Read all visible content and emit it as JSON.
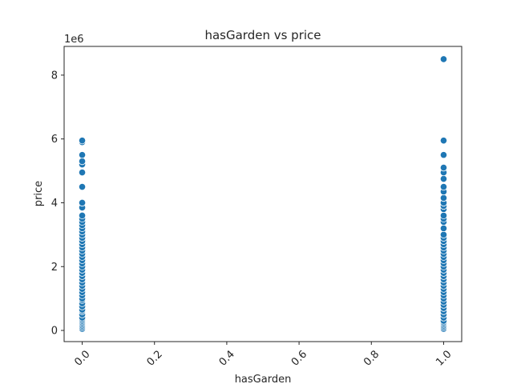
{
  "chart_data": {
    "type": "scatter",
    "title": "hasGarden vs price",
    "xlabel": "hasGarden",
    "ylabel": "price",
    "y_offset_label": "1e6",
    "xlim": [
      -0.05,
      1.05
    ],
    "ylim": [
      -0.35,
      8.9
    ],
    "y_scale_note": "values in units of 1e6",
    "xticks": [
      0.0,
      0.2,
      0.4,
      0.6,
      0.8,
      1.0
    ],
    "xtick_labels": [
      "0.0",
      "0.2",
      "0.4",
      "0.6",
      "0.8",
      "1.0"
    ],
    "yticks": [
      0,
      2,
      4,
      6,
      8
    ],
    "ytick_labels": [
      "0",
      "2",
      "4",
      "6",
      "8"
    ],
    "grid": false,
    "marker_color": "#1f77b4",
    "series": [
      {
        "x": 0,
        "y": [
          0.05,
          0.1,
          0.15,
          0.2,
          0.25,
          0.3,
          0.35,
          0.4,
          0.5,
          0.6,
          0.65,
          0.75,
          0.85,
          0.95,
          1.0,
          1.1,
          1.2,
          1.3,
          1.4,
          1.5,
          1.6,
          1.7,
          1.8,
          1.9,
          2.0,
          2.1,
          2.2,
          2.3,
          2.4,
          2.5,
          2.6,
          2.7,
          2.8,
          2.9,
          3.0,
          3.1,
          3.2,
          3.3,
          3.4,
          3.5,
          3.6,
          3.85,
          4.0,
          4.5,
          4.95,
          5.2,
          5.3,
          5.5,
          5.9,
          5.95
        ]
      },
      {
        "x": 1,
        "y": [
          0.05,
          0.1,
          0.15,
          0.2,
          0.25,
          0.3,
          0.4,
          0.5,
          0.6,
          0.7,
          0.8,
          0.9,
          1.0,
          1.1,
          1.2,
          1.3,
          1.4,
          1.5,
          1.6,
          1.7,
          1.8,
          1.9,
          2.0,
          2.1,
          2.2,
          2.3,
          2.4,
          2.5,
          2.6,
          2.7,
          2.8,
          2.9,
          3.0,
          3.2,
          3.4,
          3.5,
          3.6,
          3.8,
          3.9,
          4.0,
          4.15,
          4.35,
          4.5,
          4.75,
          4.95,
          5.1,
          5.5,
          5.95,
          8.5
        ]
      }
    ]
  }
}
